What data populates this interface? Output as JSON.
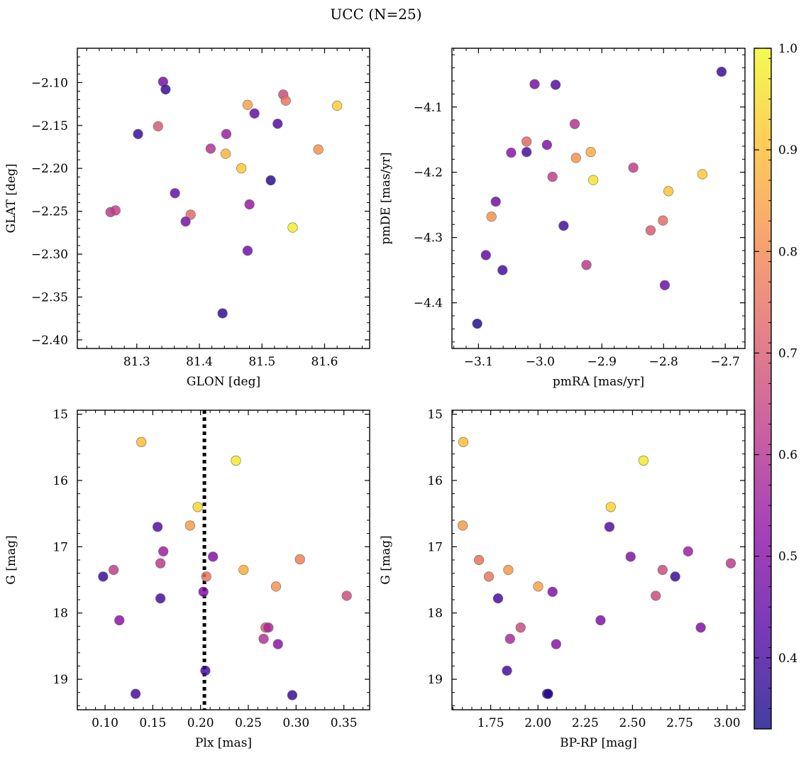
{
  "title": "UCC (N=25)",
  "colorbar": {
    "min": 0.33,
    "max": 1.0,
    "ticks": [
      0.4,
      0.5,
      0.6,
      0.7,
      0.8,
      0.9,
      1.0
    ],
    "tick_labels": [
      "0.4",
      "0.5",
      "0.6",
      "0.7",
      "0.8",
      "0.9",
      "1.0"
    ],
    "colormap": "plasma"
  },
  "chart_data": [
    {
      "type": "scatter",
      "id": "glon-glat",
      "xlabel": "GLON [deg]",
      "ylabel": "GLAT [deg]",
      "xlim": [
        81.205,
        81.672
      ],
      "ylim": [
        -2.41,
        -2.06
      ],
      "xticks": [
        81.3,
        81.4,
        81.5,
        81.6
      ],
      "xtick_labels": [
        "81.3",
        "81.4",
        "81.5",
        "81.6"
      ],
      "yticks": [
        -2.1,
        -2.15,
        -2.2,
        -2.25,
        -2.3,
        -2.35,
        -2.4
      ],
      "ytick_labels": [
        "−2.10",
        "−2.15",
        "−2.20",
        "−2.25",
        "−2.30",
        "−2.35",
        "−2.40"
      ],
      "grid": false,
      "points": [
        {
          "x": 81.342,
          "y": -2.099,
          "c": 0.48
        },
        {
          "x": 81.346,
          "y": -2.108,
          "c": 0.38
        },
        {
          "x": 81.302,
          "y": -2.16,
          "c": 0.38
        },
        {
          "x": 81.334,
          "y": -2.151,
          "c": 0.7
        },
        {
          "x": 81.418,
          "y": -2.177,
          "c": 0.6
        },
        {
          "x": 81.443,
          "y": -2.16,
          "c": 0.55
        },
        {
          "x": 81.442,
          "y": -2.183,
          "c": 0.88
        },
        {
          "x": 81.477,
          "y": -2.126,
          "c": 0.85
        },
        {
          "x": 81.488,
          "y": -2.136,
          "c": 0.45
        },
        {
          "x": 81.534,
          "y": -2.114,
          "c": 0.66
        },
        {
          "x": 81.538,
          "y": -2.121,
          "c": 0.76
        },
        {
          "x": 81.525,
          "y": -2.148,
          "c": 0.42
        },
        {
          "x": 81.467,
          "y": -2.2,
          "c": 0.92
        },
        {
          "x": 81.514,
          "y": -2.214,
          "c": 0.36
        },
        {
          "x": 81.62,
          "y": -2.127,
          "c": 0.93
        },
        {
          "x": 81.59,
          "y": -2.178,
          "c": 0.82
        },
        {
          "x": 81.361,
          "y": -2.229,
          "c": 0.45
        },
        {
          "x": 81.258,
          "y": -2.251,
          "c": 0.62
        },
        {
          "x": 81.266,
          "y": -2.249,
          "c": 0.64
        },
        {
          "x": 81.386,
          "y": -2.254,
          "c": 0.73
        },
        {
          "x": 81.378,
          "y": -2.262,
          "c": 0.48
        },
        {
          "x": 81.48,
          "y": -2.242,
          "c": 0.54
        },
        {
          "x": 81.549,
          "y": -2.269,
          "c": 0.98
        },
        {
          "x": 81.477,
          "y": -2.296,
          "c": 0.47
        },
        {
          "x": 81.437,
          "y": -2.369,
          "c": 0.37
        }
      ]
    },
    {
      "type": "scatter",
      "id": "pmra-pmde",
      "xlabel": "pmRA [mas/yr]",
      "ylabel": "pmDE [mas/yr]",
      "xlim": [
        -3.143,
        -2.668
      ],
      "ylim": [
        -4.47,
        -4.01
      ],
      "xticks": [
        -3.1,
        -3.0,
        -2.9,
        -2.8,
        -2.7
      ],
      "xtick_labels": [
        "−3.1",
        "−3.0",
        "−2.9",
        "−2.8",
        "−2.7"
      ],
      "yticks": [
        -4.1,
        -4.2,
        -4.3,
        -4.4
      ],
      "ytick_labels": [
        "−4.1",
        "−4.2",
        "−4.3",
        "−4.4"
      ],
      "grid": false,
      "points": [
        {
          "x": -3.009,
          "y": -4.065,
          "c": 0.48
        },
        {
          "x": -2.975,
          "y": -4.066,
          "c": 0.42
        },
        {
          "x": -2.706,
          "y": -4.046,
          "c": 0.38
        },
        {
          "x": -3.022,
          "y": -4.153,
          "c": 0.73
        },
        {
          "x": -2.989,
          "y": -4.158,
          "c": 0.5
        },
        {
          "x": -3.047,
          "y": -4.17,
          "c": 0.52
        },
        {
          "x": -3.022,
          "y": -4.169,
          "c": 0.4
        },
        {
          "x": -2.944,
          "y": -4.126,
          "c": 0.6
        },
        {
          "x": -2.942,
          "y": -4.178,
          "c": 0.82
        },
        {
          "x": -2.918,
          "y": -4.169,
          "c": 0.87
        },
        {
          "x": -2.98,
          "y": -4.207,
          "c": 0.63
        },
        {
          "x": -2.914,
          "y": -4.212,
          "c": 0.96
        },
        {
          "x": -2.849,
          "y": -4.193,
          "c": 0.63
        },
        {
          "x": -2.737,
          "y": -4.203,
          "c": 0.92
        },
        {
          "x": -2.792,
          "y": -4.229,
          "c": 0.91
        },
        {
          "x": -3.072,
          "y": -4.245,
          "c": 0.47
        },
        {
          "x": -3.079,
          "y": -4.268,
          "c": 0.82
        },
        {
          "x": -2.962,
          "y": -4.282,
          "c": 0.4
        },
        {
          "x": -2.821,
          "y": -4.289,
          "c": 0.7
        },
        {
          "x": -2.801,
          "y": -4.274,
          "c": 0.74
        },
        {
          "x": -3.088,
          "y": -4.327,
          "c": 0.44
        },
        {
          "x": -3.061,
          "y": -4.35,
          "c": 0.4
        },
        {
          "x": -2.925,
          "y": -4.342,
          "c": 0.62
        },
        {
          "x": -2.798,
          "y": -4.373,
          "c": 0.46
        },
        {
          "x": -3.102,
          "y": -4.432,
          "c": 0.35
        }
      ]
    },
    {
      "type": "scatter",
      "id": "plx-g",
      "xlabel": "Plx [mas]",
      "ylabel": "G [mag]",
      "xlim": [
        0.071,
        0.377
      ],
      "ylim": [
        19.46,
        14.94
      ],
      "xticks": [
        0.1,
        0.15,
        0.2,
        0.25,
        0.3,
        0.35
      ],
      "xtick_labels": [
        "0.10",
        "0.15",
        "0.20",
        "0.25",
        "0.30",
        "0.35"
      ],
      "yticks": [
        15,
        16,
        17,
        18,
        19
      ],
      "ytick_labels": [
        "15",
        "16",
        "17",
        "18",
        "19"
      ],
      "grid": false,
      "vline": {
        "x": 0.204,
        "style": "dotted"
      },
      "points": [
        {
          "x": 0.138,
          "y": 15.42,
          "c": 0.9
        },
        {
          "x": 0.237,
          "y": 15.7,
          "c": 0.97
        },
        {
          "x": 0.197,
          "y": 16.4,
          "c": 0.94
        },
        {
          "x": 0.189,
          "y": 16.68,
          "c": 0.84
        },
        {
          "x": 0.155,
          "y": 16.7,
          "c": 0.42
        },
        {
          "x": 0.161,
          "y": 17.07,
          "c": 0.55
        },
        {
          "x": 0.213,
          "y": 17.15,
          "c": 0.5
        },
        {
          "x": 0.158,
          "y": 17.25,
          "c": 0.62
        },
        {
          "x": 0.109,
          "y": 17.35,
          "c": 0.63
        },
        {
          "x": 0.098,
          "y": 17.45,
          "c": 0.38
        },
        {
          "x": 0.206,
          "y": 17.45,
          "c": 0.76
        },
        {
          "x": 0.245,
          "y": 17.35,
          "c": 0.87
        },
        {
          "x": 0.304,
          "y": 17.19,
          "c": 0.78
        },
        {
          "x": 0.279,
          "y": 17.6,
          "c": 0.82
        },
        {
          "x": 0.203,
          "y": 17.68,
          "c": 0.5
        },
        {
          "x": 0.158,
          "y": 17.78,
          "c": 0.4
        },
        {
          "x": 0.353,
          "y": 17.74,
          "c": 0.66
        },
        {
          "x": 0.115,
          "y": 18.11,
          "c": 0.52
        },
        {
          "x": 0.268,
          "y": 18.22,
          "c": 0.7
        },
        {
          "x": 0.271,
          "y": 18.22,
          "c": 0.58
        },
        {
          "x": 0.266,
          "y": 18.39,
          "c": 0.6
        },
        {
          "x": 0.281,
          "y": 18.47,
          "c": 0.52
        },
        {
          "x": 0.205,
          "y": 18.87,
          "c": 0.4
        },
        {
          "x": 0.132,
          "y": 19.22,
          "c": 0.4
        },
        {
          "x": 0.296,
          "y": 19.24,
          "c": 0.38
        }
      ]
    },
    {
      "type": "scatter",
      "id": "bprp-g",
      "xlabel": "BP-RP [mag]",
      "ylabel": "G [mag]",
      "xlim": [
        1.545,
        3.095
      ],
      "ylim": [
        19.46,
        14.94
      ],
      "xticks": [
        1.75,
        2.0,
        2.25,
        2.5,
        2.75,
        3.0
      ],
      "xtick_labels": [
        "1.75",
        "2.00",
        "2.25",
        "2.50",
        "2.75",
        "3.00"
      ],
      "yticks": [
        15,
        16,
        17,
        18,
        19
      ],
      "ytick_labels": [
        "15",
        "16",
        "17",
        "18",
        "19"
      ],
      "grid": false,
      "points": [
        {
          "x": 1.605,
          "y": 15.42,
          "c": 0.9
        },
        {
          "x": 2.558,
          "y": 15.7,
          "c": 0.97
        },
        {
          "x": 2.385,
          "y": 16.4,
          "c": 0.94
        },
        {
          "x": 1.602,
          "y": 16.68,
          "c": 0.84
        },
        {
          "x": 2.378,
          "y": 16.7,
          "c": 0.42
        },
        {
          "x": 2.794,
          "y": 17.07,
          "c": 0.55
        },
        {
          "x": 2.49,
          "y": 17.15,
          "c": 0.5
        },
        {
          "x": 3.02,
          "y": 17.25,
          "c": 0.62
        },
        {
          "x": 1.688,
          "y": 17.2,
          "c": 0.75
        },
        {
          "x": 1.843,
          "y": 17.35,
          "c": 0.83
        },
        {
          "x": 2.659,
          "y": 17.35,
          "c": 0.66
        },
        {
          "x": 1.74,
          "y": 17.45,
          "c": 0.76
        },
        {
          "x": 2.726,
          "y": 17.45,
          "c": 0.38
        },
        {
          "x": 2.001,
          "y": 17.6,
          "c": 0.85
        },
        {
          "x": 2.077,
          "y": 17.68,
          "c": 0.5
        },
        {
          "x": 1.789,
          "y": 17.78,
          "c": 0.4
        },
        {
          "x": 2.623,
          "y": 17.74,
          "c": 0.66
        },
        {
          "x": 2.331,
          "y": 18.11,
          "c": 0.5
        },
        {
          "x": 1.908,
          "y": 18.22,
          "c": 0.66
        },
        {
          "x": 2.861,
          "y": 18.22,
          "c": 0.5
        },
        {
          "x": 1.852,
          "y": 18.39,
          "c": 0.58
        },
        {
          "x": 2.096,
          "y": 18.47,
          "c": 0.52
        },
        {
          "x": 1.836,
          "y": 18.87,
          "c": 0.4
        },
        {
          "x": 2.048,
          "y": 19.22,
          "c": 0.38
        },
        {
          "x": 2.054,
          "y": 19.22,
          "c": 0.36
        }
      ]
    }
  ]
}
